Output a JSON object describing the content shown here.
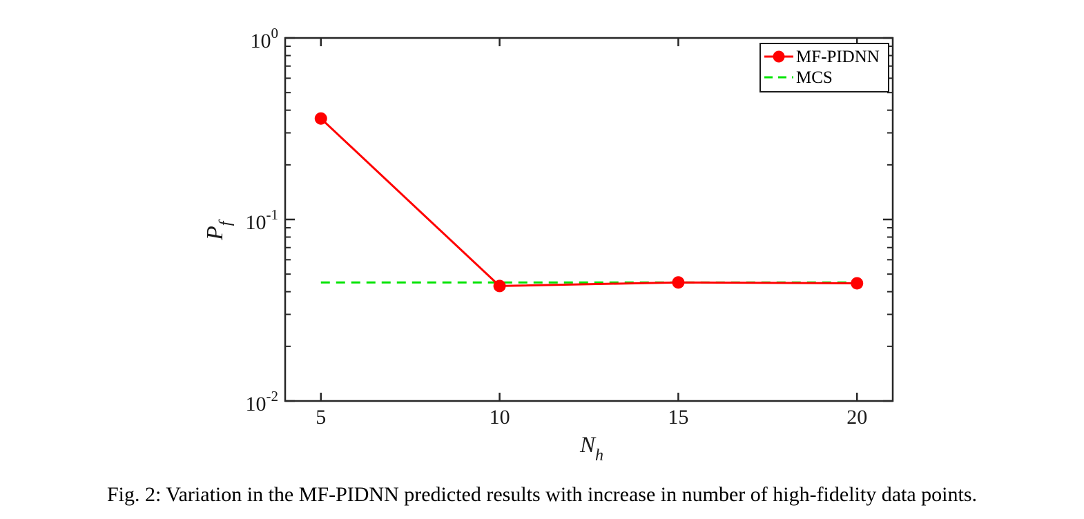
{
  "figure_caption": "Fig. 2: Variation in the MF-PIDNN predicted results with increase in number of high-fidelity data points.",
  "chart_data": {
    "type": "line",
    "title": "",
    "x_scale": "linear",
    "y_scale": "log",
    "xlim": [
      4,
      21
    ],
    "ylim": [
      0.01,
      1
    ],
    "xticks": [
      5,
      10,
      15,
      20
    ],
    "xticklabels": [
      "5",
      "10",
      "15",
      "20"
    ],
    "ytick_exponents": [
      0,
      -1,
      -2
    ],
    "yticklabels": [
      "10^0",
      "10^-1",
      "10^-2"
    ],
    "xlabel": {
      "base": "N",
      "sub": "h"
    },
    "ylabel": {
      "base": "P",
      "sub": "f"
    },
    "grid": false,
    "legend": {
      "position": "top-right",
      "entries": [
        "MF-PIDNN",
        "MCS"
      ]
    },
    "series": [
      {
        "name": "MF-PIDNN",
        "color": "#ff0000",
        "line_style": "solid",
        "marker": "filled-circle",
        "x": [
          5,
          10,
          15,
          20
        ],
        "y": [
          0.36,
          0.043,
          0.045,
          0.0445
        ]
      },
      {
        "name": "MCS",
        "color": "#00e400",
        "line_style": "dashed",
        "marker": "none",
        "x": [
          5,
          20
        ],
        "y": [
          0.045,
          0.045
        ]
      }
    ],
    "axis_color": "#262626",
    "text_color": "#1a1a1a"
  }
}
